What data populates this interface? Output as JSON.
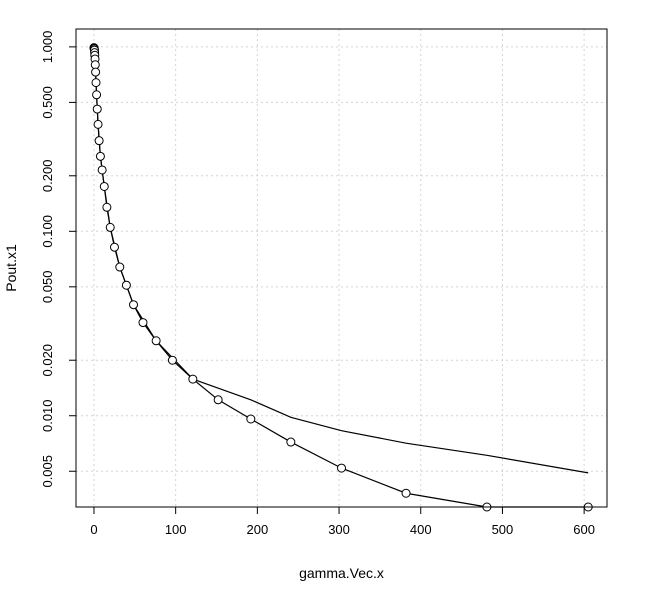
{
  "chart_data": {
    "type": "line",
    "title": "",
    "xlabel": "gamma.Vec.x",
    "ylabel": "Pout.x1",
    "xlim": [
      -22,
      628
    ],
    "ylim": [
      0.0032,
      1.25
    ],
    "ylog": true,
    "grid": true,
    "x_ticks": [
      0,
      100,
      200,
      300,
      400,
      500,
      600
    ],
    "y_ticks": [
      0.005,
      0.01,
      0.02,
      0.05,
      0.1,
      0.2,
      0.5,
      1.0
    ],
    "y_tick_labels": [
      "0.005",
      "0.010",
      "0.020",
      "0.050",
      "0.100",
      "0.200",
      "0.500",
      "1.000"
    ],
    "series": [
      {
        "style": "points-and-line",
        "x": [
          0.0,
          0.2,
          0.4,
          0.6,
          0.8,
          1.0,
          1.3,
          1.6,
          2.0,
          2.5,
          3.2,
          4.0,
          5.0,
          6.3,
          7.9,
          10.0,
          12.6,
          15.8,
          19.9,
          25.1,
          31.6,
          39.7,
          48.4,
          60.0,
          76.1,
          96.0,
          121.0,
          152.0,
          192.0,
          241.0,
          303.0,
          382.0,
          481.0,
          605.0
        ],
        "y": [
          0.99,
          0.985,
          0.975,
          0.96,
          0.93,
          0.9,
          0.86,
          0.8,
          0.73,
          0.64,
          0.55,
          0.46,
          0.38,
          0.31,
          0.255,
          0.215,
          0.175,
          0.135,
          0.105,
          0.082,
          0.064,
          0.051,
          0.04,
          0.032,
          0.0255,
          0.02,
          0.0158,
          0.0122,
          0.0096,
          0.0072,
          0.0052,
          0.0038,
          0.0032,
          0.0032
        ]
      },
      {
        "style": "line",
        "x": [
          0.0,
          0.5,
          1.0,
          2.0,
          3.2,
          5.0,
          7.9,
          12.6,
          19.9,
          31.6,
          48.4,
          76.1,
          121.0,
          192.0,
          241.0,
          303.0,
          382.0,
          481.0,
          605.0
        ],
        "y": [
          0.99,
          0.97,
          0.9,
          0.73,
          0.55,
          0.38,
          0.255,
          0.175,
          0.105,
          0.064,
          0.04,
          0.0255,
          0.0158,
          0.0122,
          0.0098,
          0.0083,
          0.0071,
          0.0061,
          0.0049
        ]
      }
    ]
  }
}
